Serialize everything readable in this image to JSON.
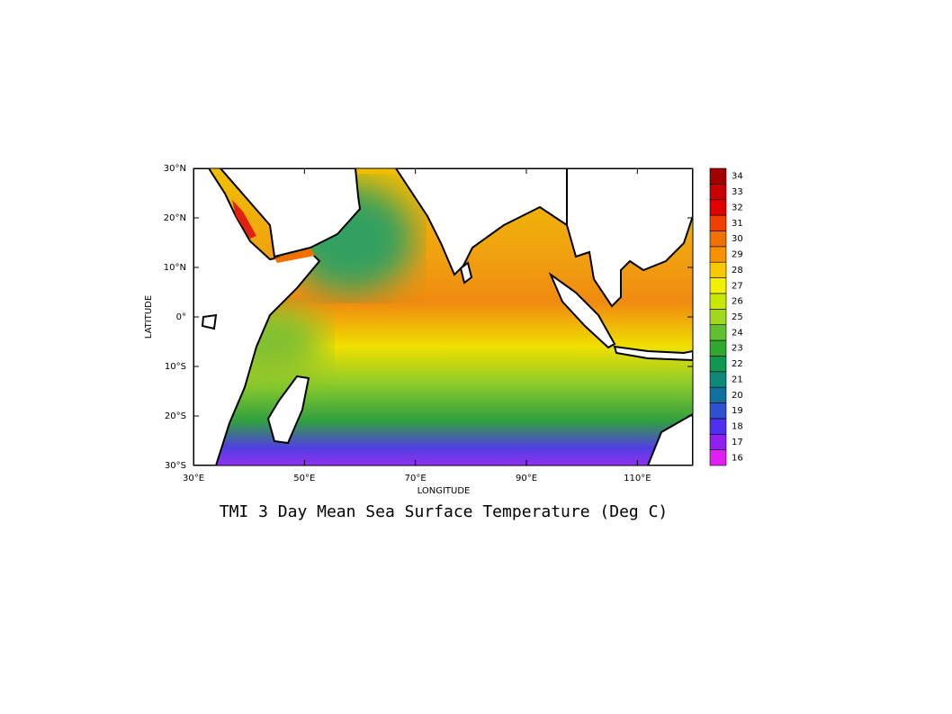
{
  "chart_data": {
    "type": "map",
    "title": "TMI 3 Day Mean Sea Surface Temperature (Deg C)",
    "x_label": "LONGITUDE",
    "y_label": "LATITUDE",
    "xlim": [
      30,
      120
    ],
    "ylim": [
      -30,
      30
    ],
    "xticks": [
      {
        "value": 30,
        "label": "30°E"
      },
      {
        "value": 50,
        "label": "50°E"
      },
      {
        "value": 70,
        "label": "70°E"
      },
      {
        "value": 90,
        "label": "90°E"
      },
      {
        "value": 110,
        "label": "110°E"
      }
    ],
    "yticks": [
      {
        "value": -30,
        "label": "30°S"
      },
      {
        "value": -20,
        "label": "20°S"
      },
      {
        "value": -10,
        "label": "10°S"
      },
      {
        "value": 0,
        "label": "0°"
      },
      {
        "value": 10,
        "label": "10°N"
      },
      {
        "value": 20,
        "label": "20°N"
      },
      {
        "value": 30,
        "label": "30°N"
      }
    ],
    "colorbar": {
      "levels": [
        16,
        17,
        18,
        19,
        20,
        21,
        22,
        23,
        24,
        25,
        26,
        27,
        28,
        29,
        30,
        31,
        32,
        33,
        34
      ],
      "colors": [
        "#e020f0",
        "#9020f0",
        "#5030f0",
        "#3050d0",
        "#1070a0",
        "#108878",
        "#109850",
        "#30a830",
        "#60c030",
        "#a0d820",
        "#c8e800",
        "#f0f000",
        "#f8c800",
        "#f89000",
        "#f07000",
        "#f04000",
        "#e00000",
        "#c80000",
        "#a00000"
      ]
    }
  }
}
